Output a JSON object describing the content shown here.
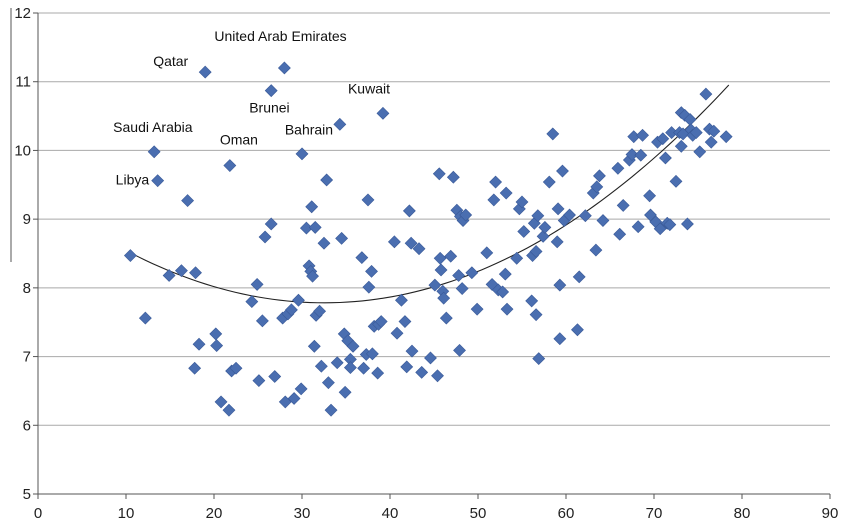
{
  "chart_data": {
    "type": "scatter",
    "title": "",
    "xlabel": "",
    "ylabel": "",
    "xlim": [
      0,
      90
    ],
    "ylim": [
      5,
      12
    ],
    "x_ticks": [
      0,
      10,
      20,
      30,
      40,
      50,
      60,
      70,
      80,
      90
    ],
    "y_ticks": [
      5,
      6,
      7,
      8,
      9,
      10,
      11,
      12
    ],
    "grid": "horizontal",
    "marker": "diamond",
    "colors": {
      "points": "#4a6eb0",
      "trendline": "#222222",
      "grid": "#a9a9a9"
    },
    "trendline": {
      "type": "polynomial-2",
      "x_range": [
        10.5,
        78.5
      ],
      "coefficients": [
        9.37,
        -0.0976,
        0.0015
      ]
    },
    "annotations": [
      {
        "label": "United Arab Emirates",
        "x": 28.0,
        "y": 11.2
      },
      {
        "label": "Qatar",
        "x": 19.0,
        "y": 11.14
      },
      {
        "label": "Brunei",
        "x": 26.5,
        "y": 10.87
      },
      {
        "label": "Kuwait",
        "x": 39.2,
        "y": 10.54
      },
      {
        "label": "Bahrain",
        "x": 34.3,
        "y": 10.38
      },
      {
        "label": "Saudi Arabia",
        "x": 13.2,
        "y": 9.98
      },
      {
        "label": "Oman",
        "x": 21.8,
        "y": 9.78
      },
      {
        "label": "Libya",
        "x": 13.6,
        "y": 9.56
      }
    ],
    "series": [
      {
        "points": [
          [
            28.0,
            11.2
          ],
          [
            19.0,
            11.14
          ],
          [
            26.5,
            10.87
          ],
          [
            39.2,
            10.54
          ],
          [
            34.3,
            10.38
          ],
          [
            13.2,
            9.98
          ],
          [
            21.8,
            9.78
          ],
          [
            13.6,
            9.56
          ],
          [
            30.0,
            9.95
          ],
          [
            17.0,
            9.27
          ],
          [
            10.5,
            8.47
          ],
          [
            12.2,
            7.56
          ],
          [
            14.9,
            8.18
          ],
          [
            16.3,
            8.25
          ],
          [
            17.9,
            8.22
          ],
          [
            17.8,
            6.83
          ],
          [
            18.3,
            7.18
          ],
          [
            20.2,
            7.33
          ],
          [
            20.3,
            7.16
          ],
          [
            20.8,
            6.34
          ],
          [
            21.7,
            6.22
          ],
          [
            22.0,
            6.79
          ],
          [
            22.5,
            6.83
          ],
          [
            24.3,
            7.8
          ],
          [
            24.9,
            8.05
          ],
          [
            25.1,
            6.65
          ],
          [
            25.5,
            7.52
          ],
          [
            25.8,
            8.74
          ],
          [
            26.5,
            8.93
          ],
          [
            26.9,
            6.71
          ],
          [
            27.8,
            7.56
          ],
          [
            28.1,
            6.34
          ],
          [
            28.4,
            7.62
          ],
          [
            28.8,
            7.68
          ],
          [
            29.1,
            6.39
          ],
          [
            29.6,
            7.82
          ],
          [
            29.9,
            6.53
          ],
          [
            30.5,
            8.87
          ],
          [
            30.8,
            8.32
          ],
          [
            31.0,
            8.24
          ],
          [
            31.1,
            9.18
          ],
          [
            31.2,
            8.17
          ],
          [
            31.4,
            7.15
          ],
          [
            31.5,
            8.88
          ],
          [
            31.6,
            7.6
          ],
          [
            32.0,
            7.66
          ],
          [
            32.2,
            6.86
          ],
          [
            32.5,
            8.65
          ],
          [
            32.8,
            9.57
          ],
          [
            33.0,
            6.62
          ],
          [
            33.3,
            6.22
          ],
          [
            34.0,
            6.91
          ],
          [
            34.5,
            8.72
          ],
          [
            34.8,
            7.33
          ],
          [
            34.9,
            6.48
          ],
          [
            35.2,
            7.23
          ],
          [
            35.5,
            6.96
          ],
          [
            35.5,
            6.84
          ],
          [
            35.8,
            7.15
          ],
          [
            36.8,
            8.44
          ],
          [
            37.0,
            6.83
          ],
          [
            37.3,
            7.03
          ],
          [
            37.5,
            9.28
          ],
          [
            37.6,
            8.01
          ],
          [
            37.9,
            8.24
          ],
          [
            38.0,
            7.04
          ],
          [
            38.2,
            7.44
          ],
          [
            38.6,
            6.76
          ],
          [
            38.7,
            7.47
          ],
          [
            39.0,
            7.51
          ],
          [
            40.5,
            8.67
          ],
          [
            40.8,
            7.34
          ],
          [
            41.3,
            7.82
          ],
          [
            41.7,
            7.51
          ],
          [
            41.9,
            6.85
          ],
          [
            42.2,
            9.12
          ],
          [
            42.4,
            8.65
          ],
          [
            42.5,
            7.08
          ],
          [
            43.3,
            8.57
          ],
          [
            43.6,
            6.77
          ],
          [
            44.6,
            6.98
          ],
          [
            45.1,
            8.04
          ],
          [
            45.4,
            6.72
          ],
          [
            45.6,
            9.66
          ],
          [
            45.7,
            8.43
          ],
          [
            45.8,
            8.26
          ],
          [
            46.0,
            7.95
          ],
          [
            46.1,
            7.85
          ],
          [
            46.4,
            7.56
          ],
          [
            46.9,
            8.46
          ],
          [
            47.2,
            9.61
          ],
          [
            47.6,
            9.13
          ],
          [
            47.8,
            8.18
          ],
          [
            47.9,
            7.09
          ],
          [
            48.0,
            9.04
          ],
          [
            48.2,
            7.99
          ],
          [
            48.3,
            8.98
          ],
          [
            48.6,
            9.06
          ],
          [
            49.3,
            8.22
          ],
          [
            49.9,
            7.69
          ],
          [
            51.0,
            8.51
          ],
          [
            51.6,
            8.05
          ],
          [
            51.8,
            9.28
          ],
          [
            52.0,
            9.54
          ],
          [
            52.3,
            7.97
          ],
          [
            52.8,
            7.94
          ],
          [
            53.1,
            8.2
          ],
          [
            53.2,
            9.38
          ],
          [
            53.3,
            7.69
          ],
          [
            54.4,
            8.43
          ],
          [
            54.7,
            9.15
          ],
          [
            55.0,
            9.25
          ],
          [
            55.2,
            8.82
          ],
          [
            56.1,
            7.81
          ],
          [
            56.2,
            8.47
          ],
          [
            56.4,
            8.94
          ],
          [
            56.6,
            8.53
          ],
          [
            56.6,
            7.61
          ],
          [
            56.8,
            9.05
          ],
          [
            56.9,
            6.97
          ],
          [
            57.4,
            8.75
          ],
          [
            57.6,
            8.88
          ],
          [
            58.1,
            9.54
          ],
          [
            58.5,
            10.24
          ],
          [
            59.0,
            8.67
          ],
          [
            59.1,
            9.15
          ],
          [
            59.3,
            7.26
          ],
          [
            59.3,
            8.04
          ],
          [
            59.6,
            9.7
          ],
          [
            59.8,
            8.98
          ],
          [
            60.4,
            9.06
          ],
          [
            61.3,
            7.39
          ],
          [
            61.5,
            8.16
          ],
          [
            62.2,
            9.05
          ],
          [
            63.1,
            9.38
          ],
          [
            63.4,
            8.55
          ],
          [
            63.5,
            9.47
          ],
          [
            63.8,
            9.63
          ],
          [
            64.2,
            8.98
          ],
          [
            65.9,
            9.74
          ],
          [
            66.1,
            8.78
          ],
          [
            66.5,
            9.2
          ],
          [
            67.2,
            9.86
          ],
          [
            67.5,
            9.94
          ],
          [
            67.7,
            10.2
          ],
          [
            68.2,
            8.89
          ],
          [
            68.5,
            9.93
          ],
          [
            68.7,
            10.22
          ],
          [
            69.5,
            9.34
          ],
          [
            69.6,
            9.06
          ],
          [
            70.2,
            8.96
          ],
          [
            70.4,
            10.12
          ],
          [
            70.7,
            8.86
          ],
          [
            71.0,
            10.17
          ],
          [
            71.3,
            9.89
          ],
          [
            71.5,
            8.94
          ],
          [
            71.8,
            8.92
          ],
          [
            72.0,
            10.26
          ],
          [
            72.5,
            9.55
          ],
          [
            72.9,
            10.26
          ],
          [
            73.1,
            10.06
          ],
          [
            73.1,
            10.55
          ],
          [
            73.3,
            10.24
          ],
          [
            73.5,
            10.51
          ],
          [
            73.8,
            8.93
          ],
          [
            74.1,
            10.45
          ],
          [
            74.2,
            10.3
          ],
          [
            74.4,
            10.22
          ],
          [
            74.8,
            10.26
          ],
          [
            75.2,
            9.98
          ],
          [
            75.9,
            10.82
          ],
          [
            76.3,
            10.31
          ],
          [
            76.5,
            10.12
          ],
          [
            76.8,
            10.28
          ],
          [
            78.2,
            10.2
          ]
        ]
      }
    ]
  }
}
